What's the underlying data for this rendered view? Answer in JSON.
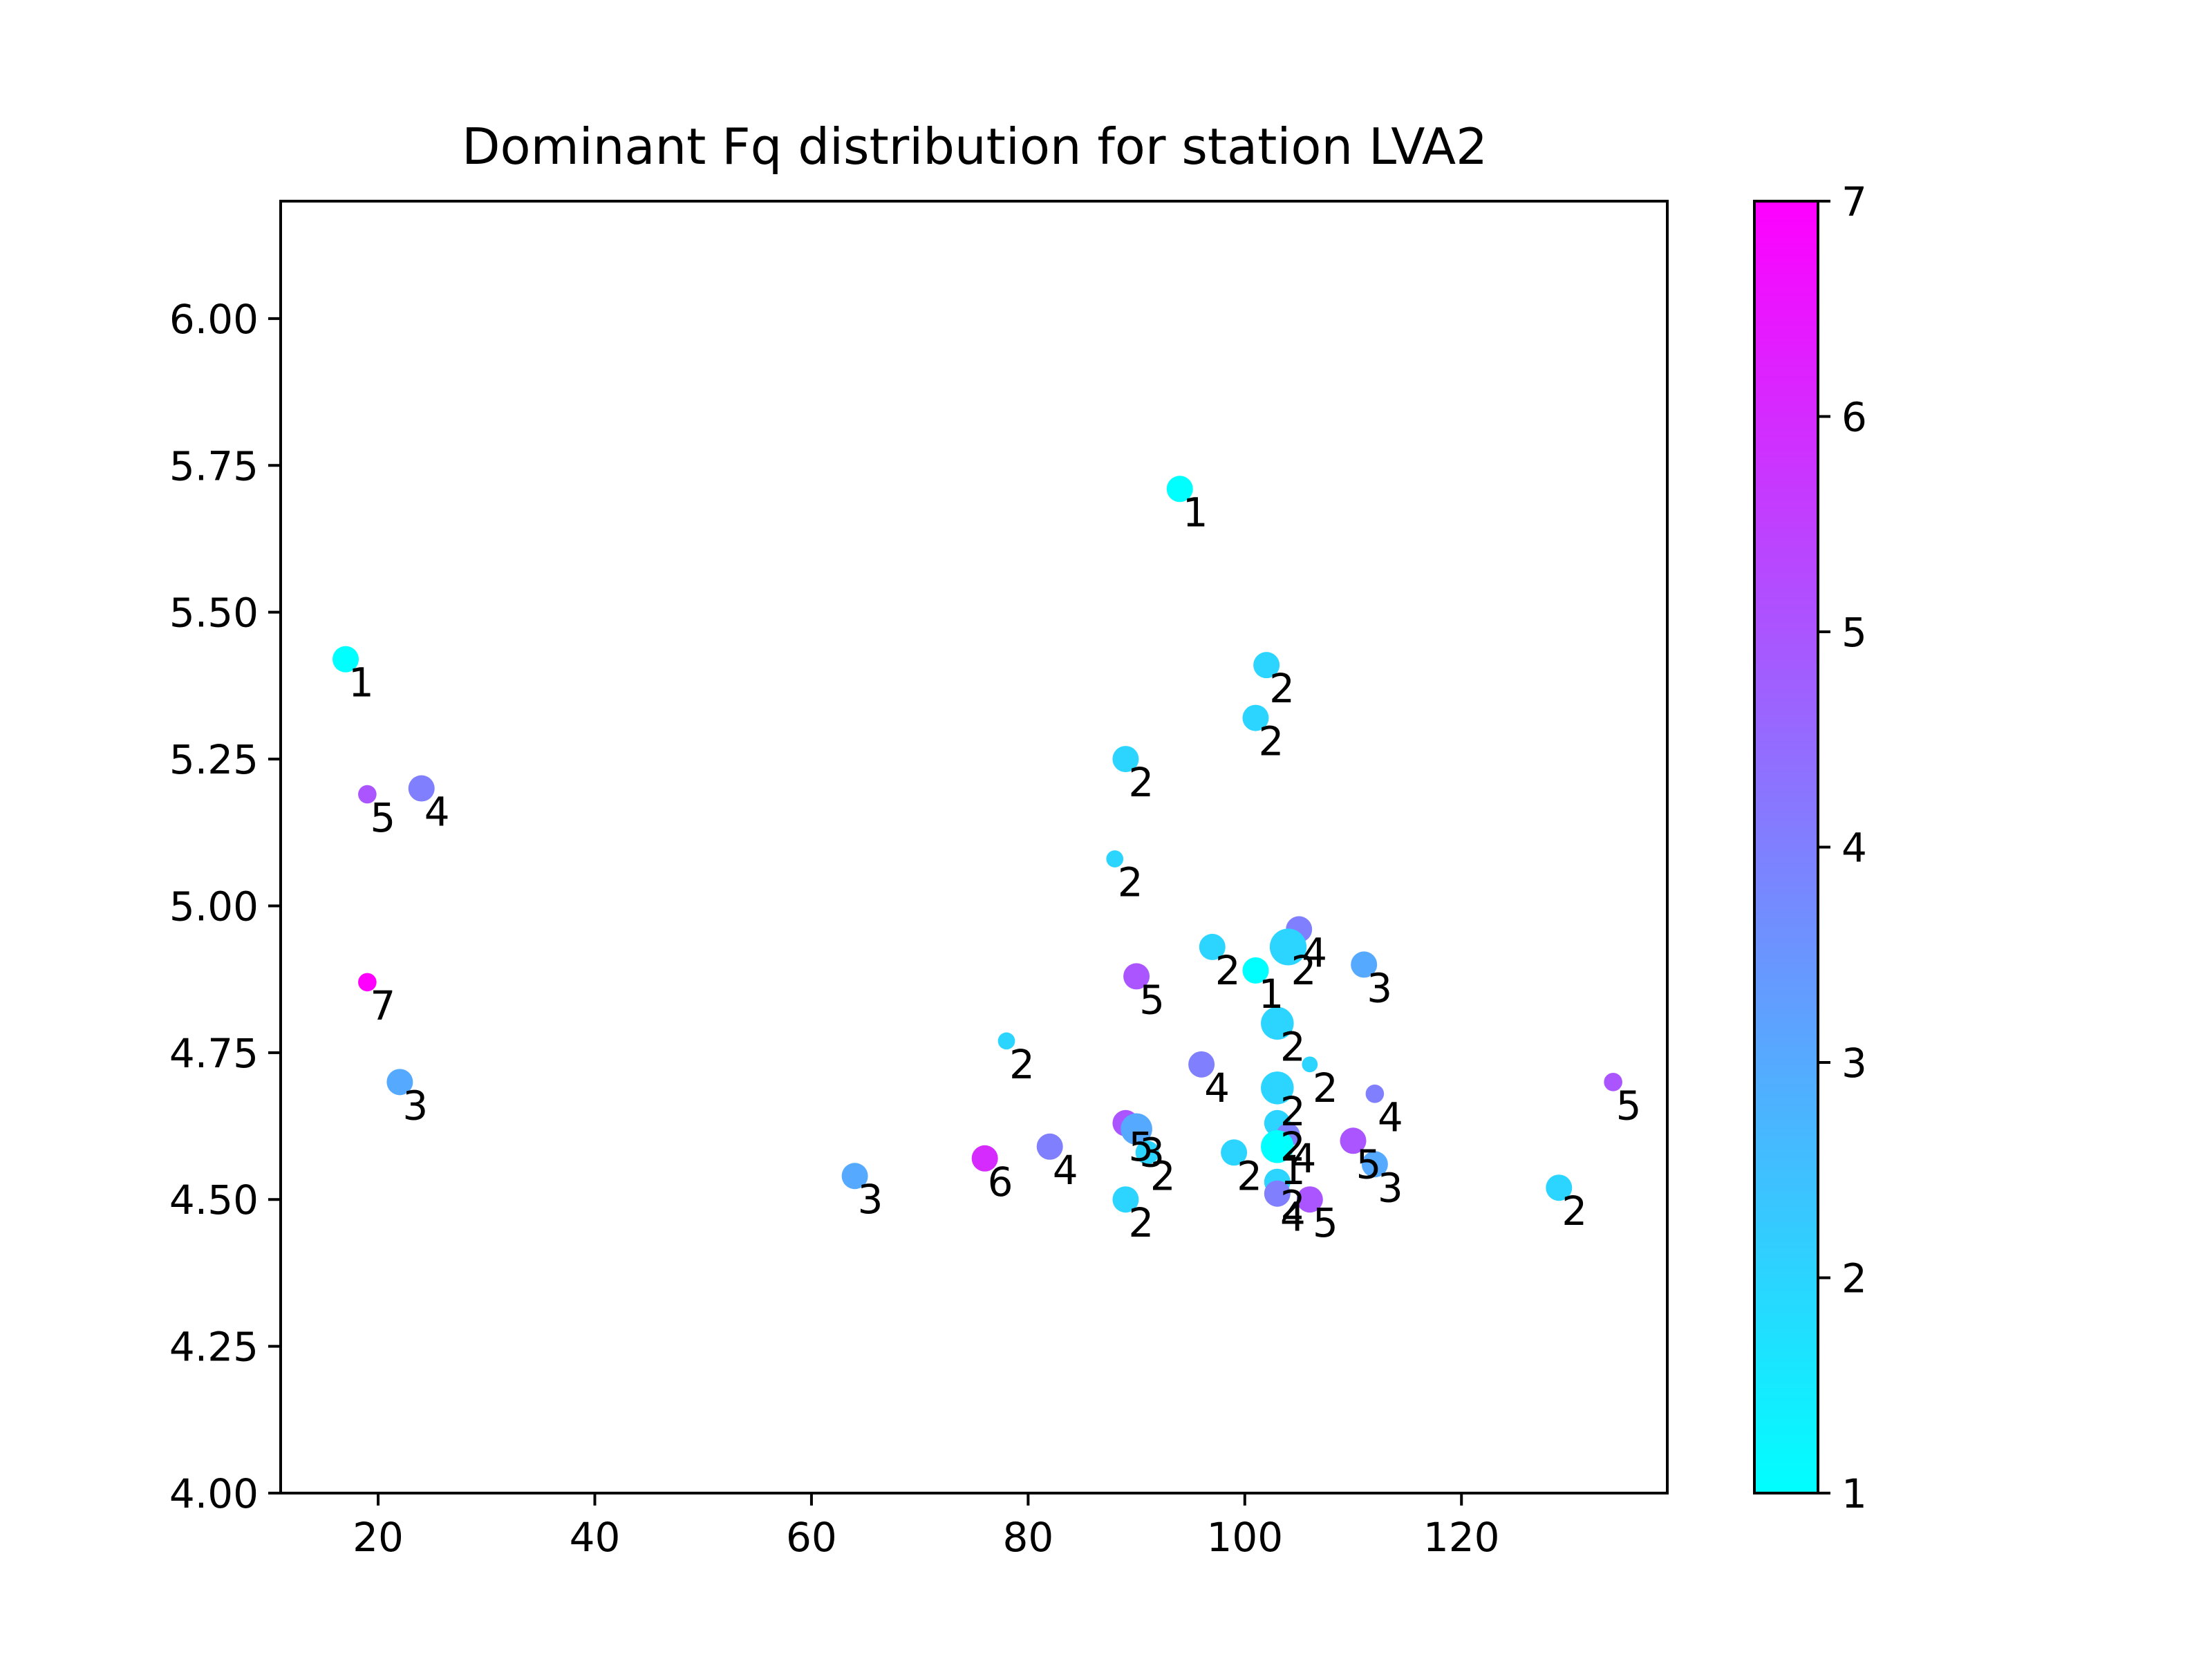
{
  "chart_data": {
    "type": "scatter",
    "title": "Dominant Fq distribution for station LVA2",
    "xlabel": "",
    "ylabel": "",
    "xlim": [
      11,
      139
    ],
    "ylim": [
      4.0,
      6.2
    ],
    "xticks": [
      20,
      40,
      60,
      80,
      100,
      120
    ],
    "xtick_labels": [
      "20",
      "40",
      "60",
      "80",
      "100",
      "120"
    ],
    "yticks": [
      4.0,
      4.25,
      4.5,
      4.75,
      5.0,
      5.25,
      5.5,
      5.75,
      6.0
    ],
    "ytick_labels": [
      "4.00",
      "4.25",
      "4.50",
      "4.75",
      "5.00",
      "5.25",
      "5.50",
      "5.75",
      "6.00"
    ],
    "colorbar": {
      "cmap": "cool",
      "range": [
        1,
        7
      ],
      "ticks": [
        1,
        2,
        3,
        4,
        5,
        6,
        7
      ],
      "tick_labels": [
        "1",
        "2",
        "3",
        "4",
        "5",
        "6",
        "7"
      ],
      "color_min": "#00ffff",
      "color_max": "#ff00ff"
    },
    "points": [
      {
        "x": 94,
        "y": 5.71,
        "value": 1,
        "size": 1.0,
        "label": "1"
      },
      {
        "x": 17,
        "y": 5.42,
        "value": 1,
        "size": 1.0,
        "label": "1"
      },
      {
        "x": 102,
        "y": 5.41,
        "value": 2,
        "size": 1.0,
        "label": "2"
      },
      {
        "x": 101,
        "y": 5.32,
        "value": 2,
        "size": 1.0,
        "label": "2"
      },
      {
        "x": 89,
        "y": 5.25,
        "value": 2,
        "size": 1.0,
        "label": "2"
      },
      {
        "x": 19,
        "y": 5.19,
        "value": 5,
        "size": 0.7,
        "label": "5"
      },
      {
        "x": 24,
        "y": 5.2,
        "value": 4,
        "size": 1.0,
        "label": "4"
      },
      {
        "x": 88,
        "y": 5.08,
        "value": 2,
        "size": 0.65,
        "label": "2"
      },
      {
        "x": 105,
        "y": 4.96,
        "value": 4,
        "size": 1.0,
        "label": "4"
      },
      {
        "x": 97,
        "y": 4.93,
        "value": 2,
        "size": 1.0,
        "label": "2"
      },
      {
        "x": 104,
        "y": 4.93,
        "value": 2,
        "size": 1.4,
        "label": "2"
      },
      {
        "x": 111,
        "y": 4.9,
        "value": 3,
        "size": 1.0,
        "label": "3"
      },
      {
        "x": 101,
        "y": 4.89,
        "value": 1,
        "size": 1.0,
        "label": "1"
      },
      {
        "x": 90,
        "y": 4.88,
        "value": 5,
        "size": 1.0,
        "label": "5"
      },
      {
        "x": 19,
        "y": 4.87,
        "value": 7,
        "size": 0.7,
        "label": "7"
      },
      {
        "x": 103,
        "y": 4.8,
        "value": 2,
        "size": 1.25,
        "label": "2"
      },
      {
        "x": 78,
        "y": 4.77,
        "value": 2,
        "size": 0.65,
        "label": "2"
      },
      {
        "x": 106,
        "y": 4.73,
        "value": 2,
        "size": 0.6,
        "label": "2"
      },
      {
        "x": 96,
        "y": 4.73,
        "value": 4,
        "size": 1.0,
        "label": "4"
      },
      {
        "x": 22,
        "y": 4.7,
        "value": 3,
        "size": 1.0,
        "label": "3"
      },
      {
        "x": 103,
        "y": 4.69,
        "value": 2,
        "size": 1.25,
        "label": "2"
      },
      {
        "x": 112,
        "y": 4.68,
        "value": 4,
        "size": 0.7,
        "label": "4"
      },
      {
        "x": 134,
        "y": 4.7,
        "value": 5,
        "size": 0.7,
        "label": "5"
      },
      {
        "x": 89,
        "y": 4.63,
        "value": 5,
        "size": 1.0,
        "label": "5"
      },
      {
        "x": 90,
        "y": 4.62,
        "value": 3,
        "size": 1.2,
        "label": "3"
      },
      {
        "x": 103,
        "y": 4.63,
        "value": 2,
        "size": 1.0,
        "label": "2"
      },
      {
        "x": 104,
        "y": 4.61,
        "value": 4,
        "size": 0.9,
        "label": "4"
      },
      {
        "x": 110,
        "y": 4.6,
        "value": 5,
        "size": 1.0,
        "label": "5"
      },
      {
        "x": 82,
        "y": 4.59,
        "value": 4,
        "size": 1.0,
        "label": "4"
      },
      {
        "x": 103,
        "y": 4.59,
        "value": 1,
        "size": 1.25,
        "label": "1"
      },
      {
        "x": 91,
        "y": 4.58,
        "value": 2,
        "size": 0.9,
        "label": "2"
      },
      {
        "x": 99,
        "y": 4.58,
        "value": 2,
        "size": 1.0,
        "label": "2"
      },
      {
        "x": 76,
        "y": 4.57,
        "value": 6,
        "size": 1.0,
        "label": "6"
      },
      {
        "x": 112,
        "y": 4.56,
        "value": 3,
        "size": 1.0,
        "label": "3"
      },
      {
        "x": 64,
        "y": 4.54,
        "value": 3,
        "size": 1.0,
        "label": "3"
      },
      {
        "x": 103,
        "y": 4.53,
        "value": 2,
        "size": 1.0,
        "label": "2"
      },
      {
        "x": 129,
        "y": 4.52,
        "value": 2,
        "size": 1.0,
        "label": "2"
      },
      {
        "x": 103,
        "y": 4.51,
        "value": 4,
        "size": 1.0,
        "label": "4"
      },
      {
        "x": 106,
        "y": 4.5,
        "value": 5,
        "size": 1.0,
        "label": "5"
      },
      {
        "x": 89,
        "y": 4.5,
        "value": 2,
        "size": 1.0,
        "label": "2"
      }
    ]
  }
}
